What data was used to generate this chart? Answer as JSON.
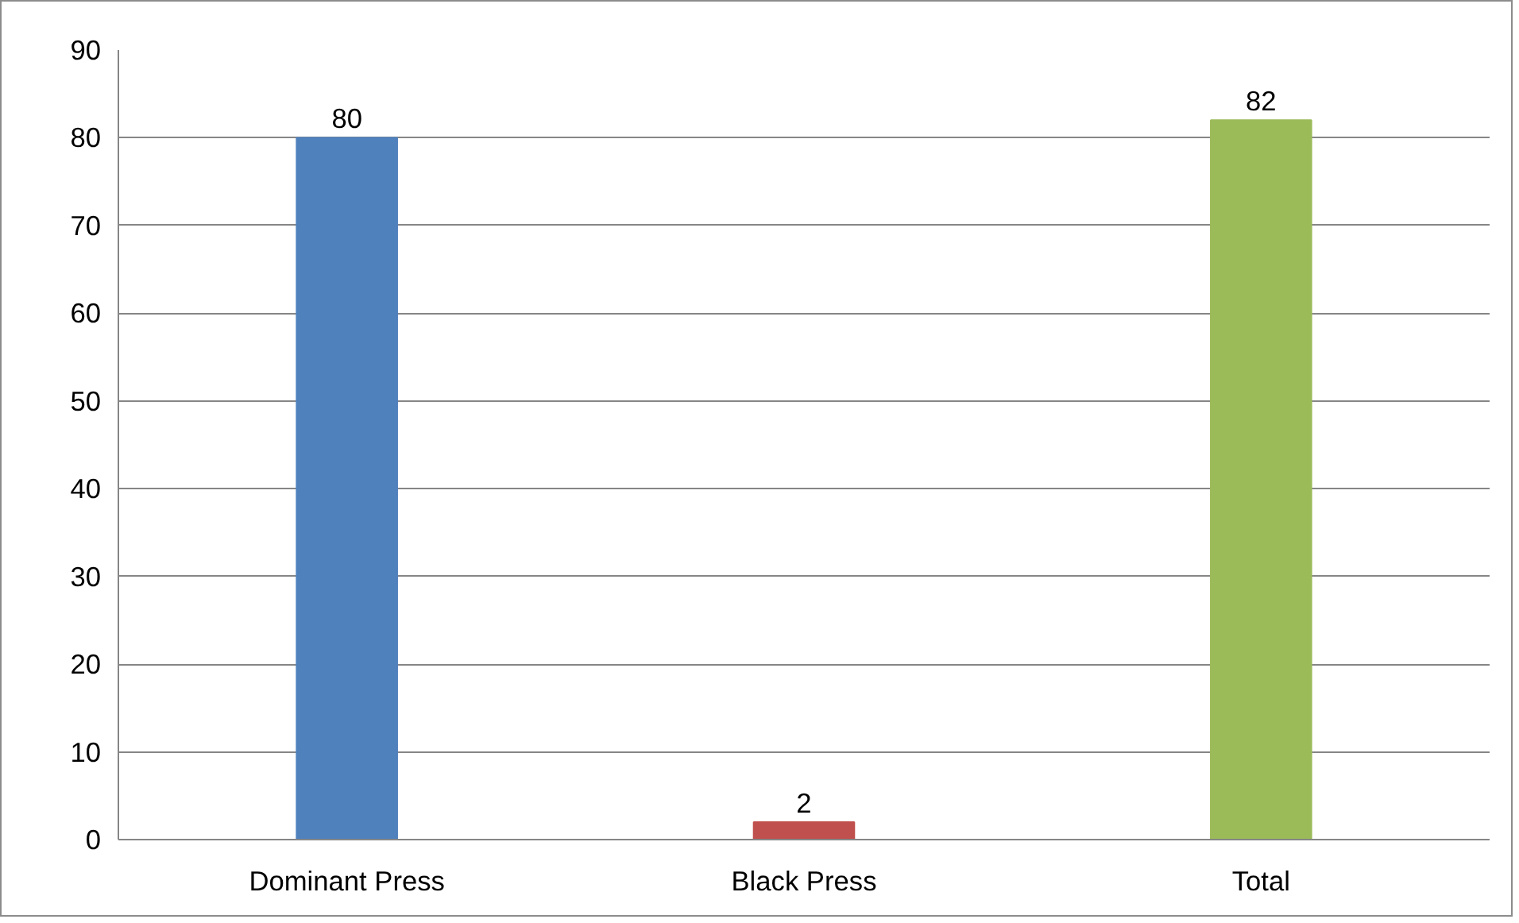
{
  "chart_data": {
    "type": "bar",
    "categories": [
      "Dominant Press",
      "Black Press",
      "Total"
    ],
    "values": [
      80,
      2,
      82
    ],
    "colors": [
      "#4f81bd",
      "#c0504d",
      "#9bbb59"
    ],
    "ylim": [
      0,
      90
    ],
    "yticks": [
      0,
      10,
      20,
      30,
      40,
      50,
      60,
      70,
      80,
      90
    ],
    "grid": "y",
    "data_labels": true
  }
}
